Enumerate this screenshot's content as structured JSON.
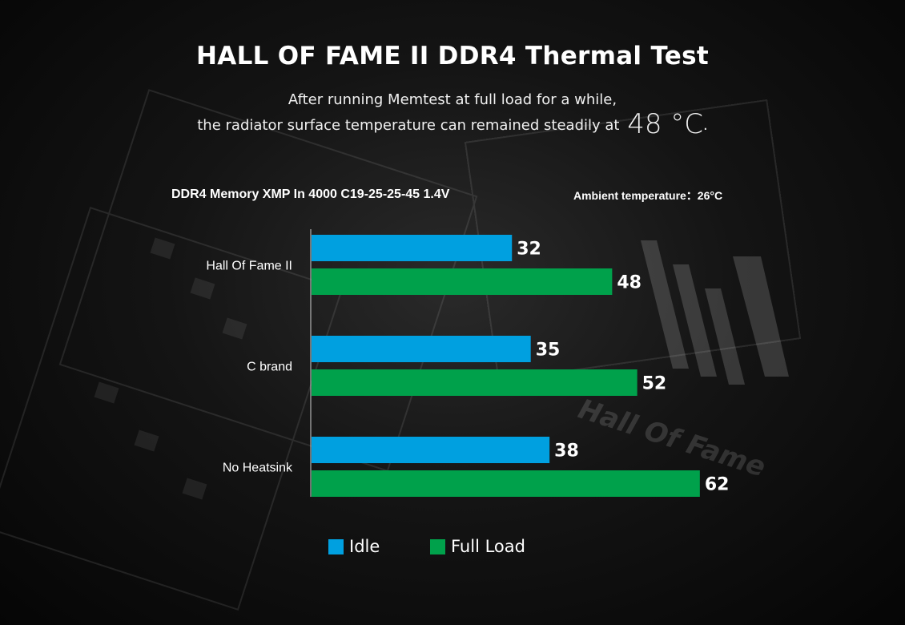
{
  "header": {
    "title": "HALL OF FAME II DDR4 Thermal Test",
    "subtitle_line1": "After running Memtest at full load for a while,",
    "subtitle_line2": "the radiator surface temperature can remained steadily at",
    "highlight_value": "48 °C",
    "highlight_suffix": "."
  },
  "chart_header": {
    "spec": "DDR4 Memory XMP In 4000 C19-25-25-45 1.4V",
    "ambient": "Ambient temperature：26°C"
  },
  "watermark": {
    "text": "Hall Of Fame"
  },
  "colors": {
    "idle": "#00a0e0",
    "full_load": "#00a14b",
    "axis": "#cfcfcf",
    "background": "#111111"
  },
  "chart_data": {
    "type": "bar",
    "orientation": "horizontal",
    "title": "",
    "xlabel": "",
    "ylabel": "",
    "categories": [
      "Hall Of Fame II",
      "C brand",
      "No Heatsink"
    ],
    "series": [
      {
        "name": "Idle",
        "values": [
          32,
          35,
          38
        ]
      },
      {
        "name": "Full Load",
        "values": [
          48,
          52,
          62
        ]
      }
    ],
    "xlim": [
      0,
      80
    ],
    "grid": false,
    "show_x_axis_ticks": false,
    "data_labels": true,
    "legend_position": "bottom"
  }
}
